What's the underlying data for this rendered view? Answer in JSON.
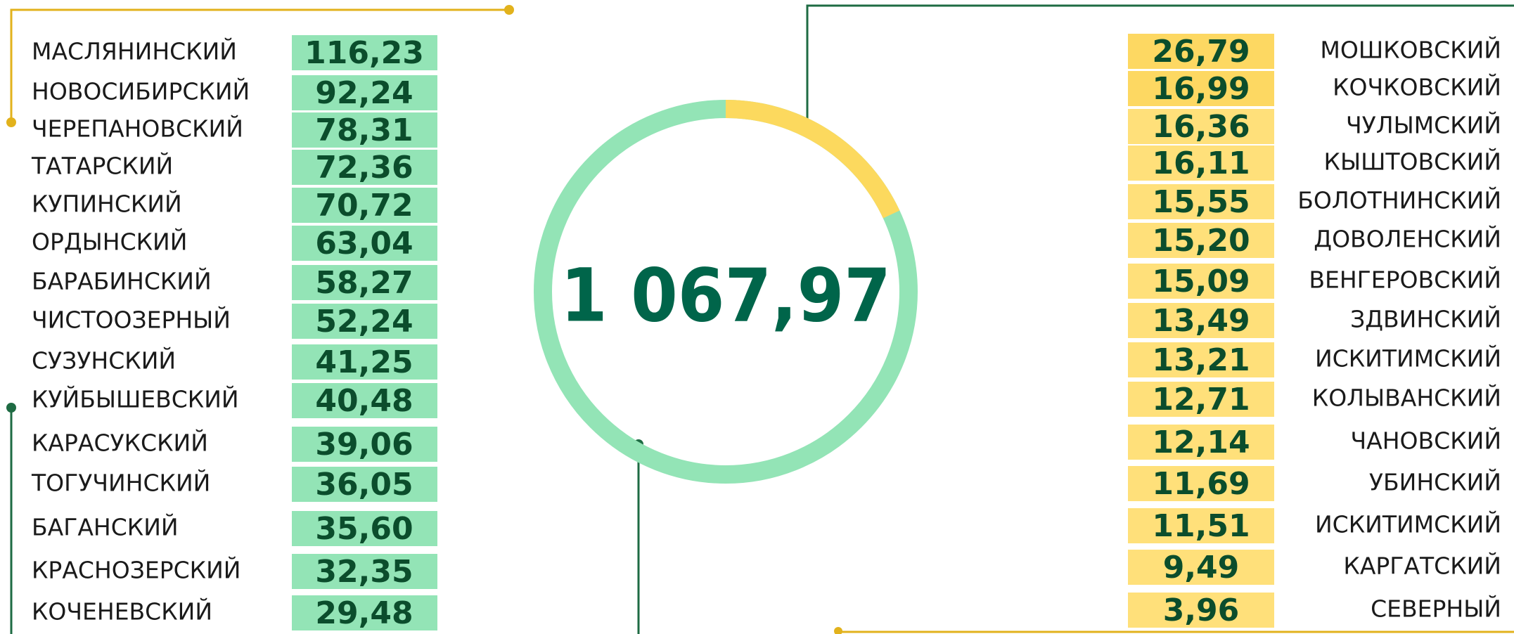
{
  "total": "1 067,97",
  "left": [
    {
      "name": "МАСЛЯНИНСКИЙ",
      "value": "116,23"
    },
    {
      "name": "НОВОСИБИРСКИЙ",
      "value": "92,24"
    },
    {
      "name": "ЧЕРЕПАНОВСКИЙ",
      "value": "78,31"
    },
    {
      "name": "ТАТАРСКИЙ",
      "value": "72,36"
    },
    {
      "name": "КУПИНСКИЙ",
      "value": "70,72"
    },
    {
      "name": "ОРДЫНСКИЙ",
      "value": "63,04"
    },
    {
      "name": "БАРАБИНСКИЙ",
      "value": "58,27"
    },
    {
      "name": "ЧИСТООЗЕРНЫЙ",
      "value": "52,24"
    },
    {
      "name": "СУЗУНСКИЙ",
      "value": "41,25"
    },
    {
      "name": "КУЙБЫШЕВСКИЙ",
      "value": "40,48"
    },
    {
      "name": "КАРАСУКСКИЙ",
      "value": "39,06"
    },
    {
      "name": "ТОГУЧИНСКИЙ",
      "value": "36,05"
    },
    {
      "name": "БАГАНСКИЙ",
      "value": "35,60"
    },
    {
      "name": "КРАСНОЗЕРСКИЙ",
      "value": "32,35"
    },
    {
      "name": "КОЧЕНЕВСКИЙ",
      "value": "29,48"
    }
  ],
  "right": [
    {
      "name": "МОШКОВСКИЙ",
      "value": "26,79"
    },
    {
      "name": "КОЧКОВСКИЙ",
      "value": "16,99"
    },
    {
      "name": "ЧУЛЫМСКИЙ",
      "value": "16,36"
    },
    {
      "name": "КЫШТОВСКИЙ",
      "value": "16,11"
    },
    {
      "name": "БОЛОТНИНСКИЙ",
      "value": "15,55"
    },
    {
      "name": "ДОВОЛЕНСКИЙ",
      "value": "15,20"
    },
    {
      "name": "ВЕНГЕРОВСКИЙ",
      "value": "15,09"
    },
    {
      "name": "ЗДВИНСКИЙ",
      "value": "13,49"
    },
    {
      "name": "ИСКИТИМСКИЙ",
      "value": "13,21"
    },
    {
      "name": "КОЛЫВАНСКИЙ",
      "value": "12,71"
    },
    {
      "name": "ЧАНОВСКИЙ",
      "value": "12,14"
    },
    {
      "name": "УБИНСКИЙ",
      "value": "11,69"
    },
    {
      "name": "ИСКИТИМСКИЙ",
      "value": "11,51"
    },
    {
      "name": "КАРГАТСКИЙ",
      "value": "9,49"
    },
    {
      "name": "СЕВЕРНЫЙ",
      "value": "3,96"
    }
  ]
}
